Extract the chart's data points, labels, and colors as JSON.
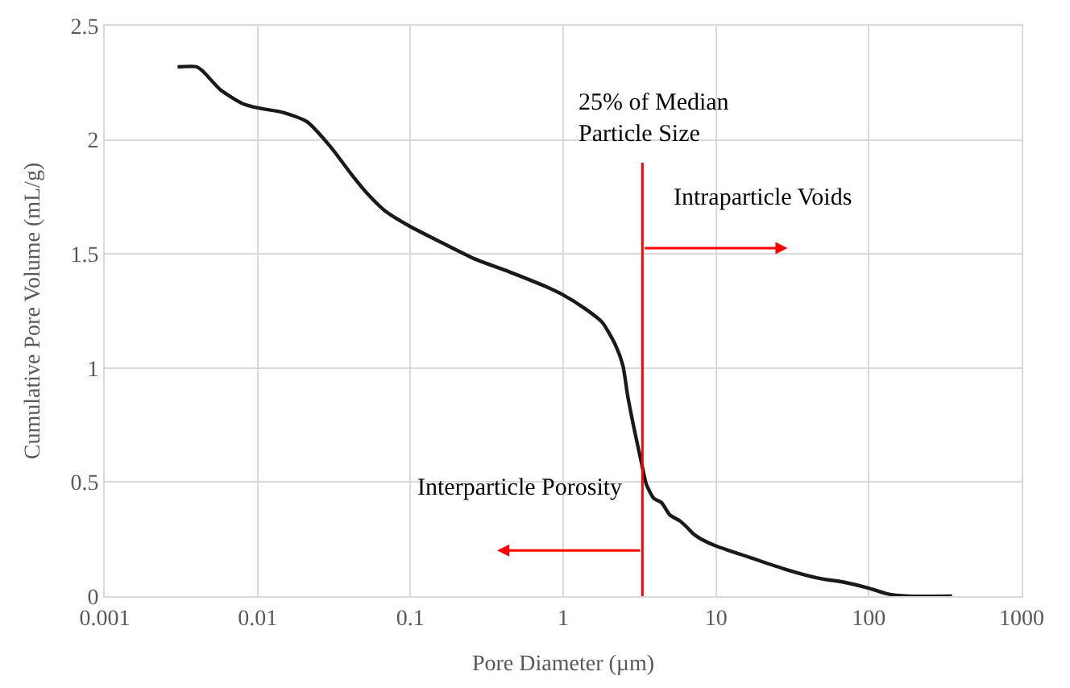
{
  "chart_data": {
    "type": "line",
    "xlabel": "Pore Diameter (µm)",
    "ylabel": "Cumulative Pore Volume (mL/g)",
    "log": "x",
    "xlim": [
      0.001,
      1000
    ],
    "xticks": [
      0.001,
      0.01,
      0.1,
      1,
      10,
      100,
      1000
    ],
    "ylim": [
      0,
      2.5
    ],
    "yticks": [
      0,
      0.5,
      1,
      1.5,
      2,
      2.5
    ],
    "grid": true,
    "marker": "none",
    "line_style": "solid",
    "series": [
      {
        "color": "#1a1a1a",
        "x": [
          0.003,
          0.004,
          0.0044,
          0.0057,
          0.0079,
          0.01,
          0.0147,
          0.021,
          0.03,
          0.041,
          0.053,
          0.068,
          0.1,
          0.16,
          0.26,
          0.45,
          0.75,
          1,
          1.39,
          1.8,
          2.2,
          2.46,
          2.64,
          2.92,
          3.24,
          3.5,
          3.9,
          4.4,
          5.0,
          5.8,
          6.5,
          7.2,
          8.0,
          10,
          16.6,
          27.8,
          46,
          70,
          100,
          132,
          180,
          350
        ],
        "values": [
          2.32,
          2.32,
          2.3,
          2.22,
          2.16,
          2.14,
          2.12,
          2.08,
          1.97,
          1.85,
          1.76,
          1.69,
          1.62,
          1.55,
          1.48,
          1.42,
          1.36,
          1.32,
          1.26,
          1.2,
          1.1,
          1.01,
          0.88,
          0.73,
          0.59,
          0.49,
          0.43,
          0.41,
          0.355,
          0.33,
          0.3,
          0.27,
          0.25,
          0.22,
          0.17,
          0.12,
          0.08,
          0.06,
          0.035,
          0.01,
          0,
          0
        ]
      }
    ],
    "ref_lines": [
      {
        "axis": "x",
        "value": 3.3,
        "label": "25% of Median\nParticle Size",
        "color": "#ff0000"
      }
    ],
    "annotations": [
      "Intraparticle Voids",
      "Interparticle Porosity"
    ]
  }
}
